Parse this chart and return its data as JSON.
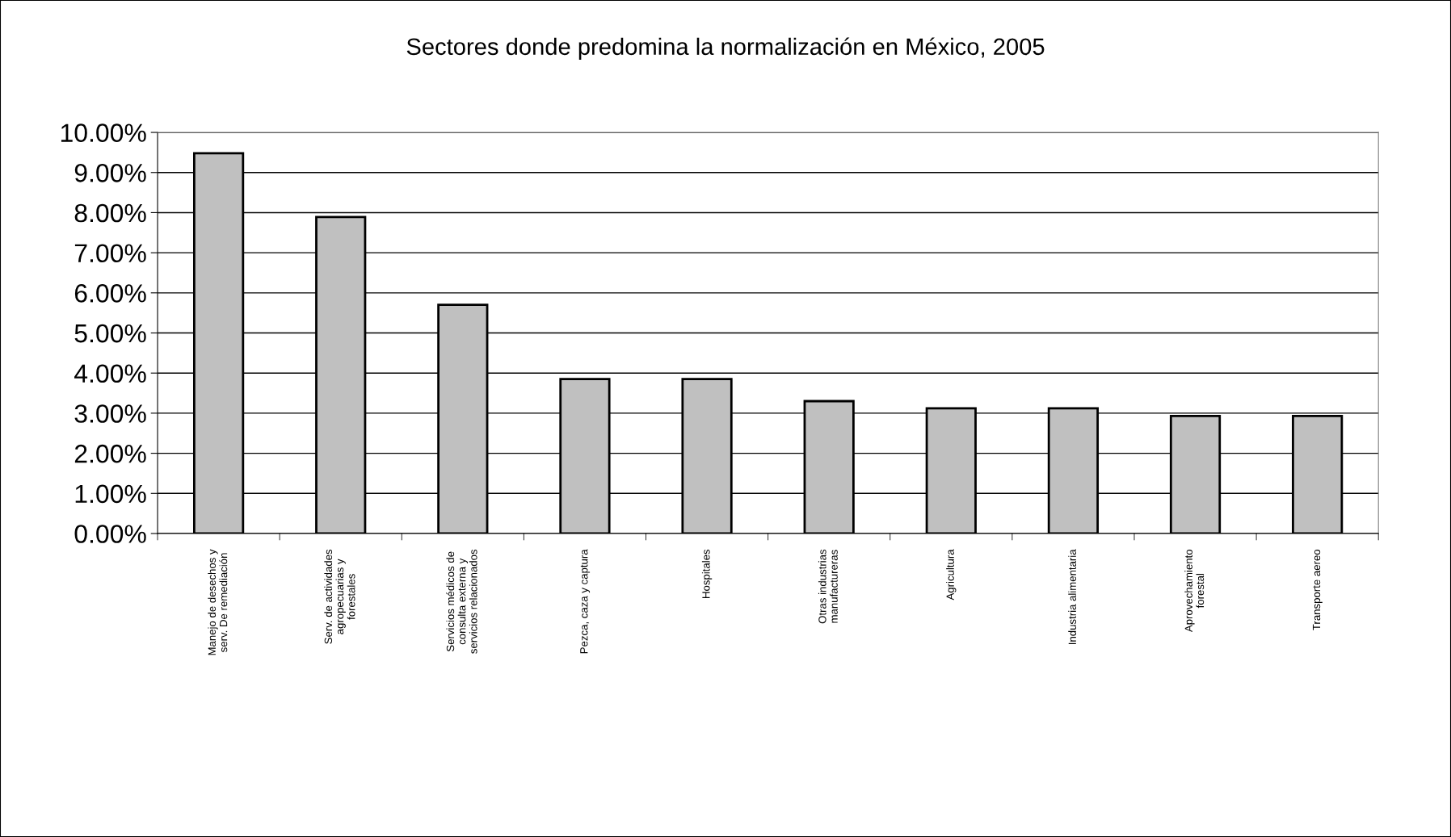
{
  "chart_data": {
    "type": "bar",
    "title": "Sectores donde predomina la normalización en México, 2005",
    "categories": [
      "Manejo de desechos y\nserv. De remediación",
      "Serv. de actividades\nagropecuarias y\nforestales",
      "Servicios médicos de\nconsulta externa y\nservicios relacionados",
      "Pezca, caza y captura",
      "Hospitales",
      "Otras industrias\nmanufactureras",
      "Agricultura",
      "Industria alimentaria",
      "Aprovechamiento\nforestal",
      "Transporte aereo"
    ],
    "values": [
      9.48,
      7.89,
      5.7,
      3.85,
      3.85,
      3.3,
      3.12,
      3.12,
      2.93,
      2.93
    ],
    "color": "#c0c0c0",
    "ylim": [
      0,
      10
    ],
    "yticks": [
      {
        "value": 0,
        "label": "0.00%"
      },
      {
        "value": 1,
        "label": "1.00%"
      },
      {
        "value": 2,
        "label": "2.00%"
      },
      {
        "value": 3,
        "label": "3.00%"
      },
      {
        "value": 4,
        "label": "4.00%"
      },
      {
        "value": 5,
        "label": "5.00%"
      },
      {
        "value": 6,
        "label": "6.00%"
      },
      {
        "value": 7,
        "label": "7.00%"
      },
      {
        "value": 8,
        "label": "8.00%"
      },
      {
        "value": 9,
        "label": "9.00%"
      },
      {
        "value": 10,
        "label": "10.00%"
      }
    ],
    "grid": "y",
    "legend": false
  }
}
